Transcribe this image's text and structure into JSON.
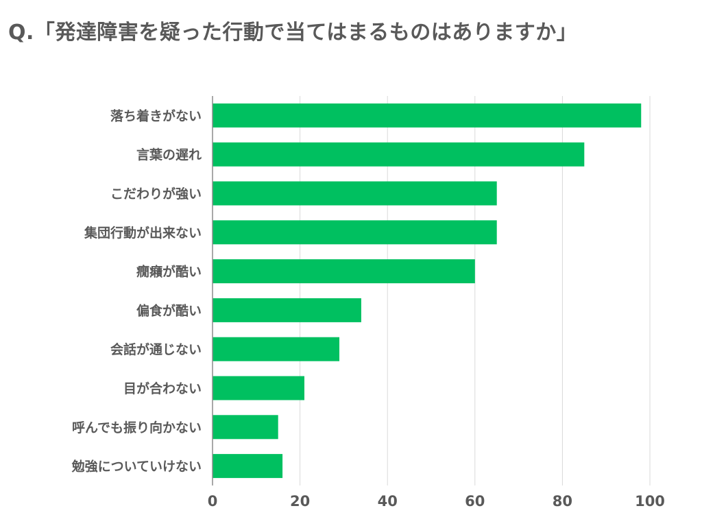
{
  "title": "Q.「発達障害を疑った行動で当てはまるものはありますか」",
  "chart_data": {
    "type": "bar",
    "orientation": "horizontal",
    "categories": [
      "落ち着きがない",
      "言葉の遅れ",
      "こだわりが強い",
      "集団行動が出来ない",
      "癇癪が酷い",
      "偏食が酷い",
      "会話が通じない",
      "目が合わない",
      "呼んでも振り向かない",
      "勉強についていけない"
    ],
    "values": [
      98,
      85,
      65,
      65,
      60,
      34,
      29,
      21,
      15,
      16
    ],
    "xlim": [
      0,
      100
    ],
    "xticks": [
      "0",
      "20",
      "40",
      "60",
      "80",
      "100"
    ],
    "grid": true,
    "bar_color": "#00c060"
  }
}
